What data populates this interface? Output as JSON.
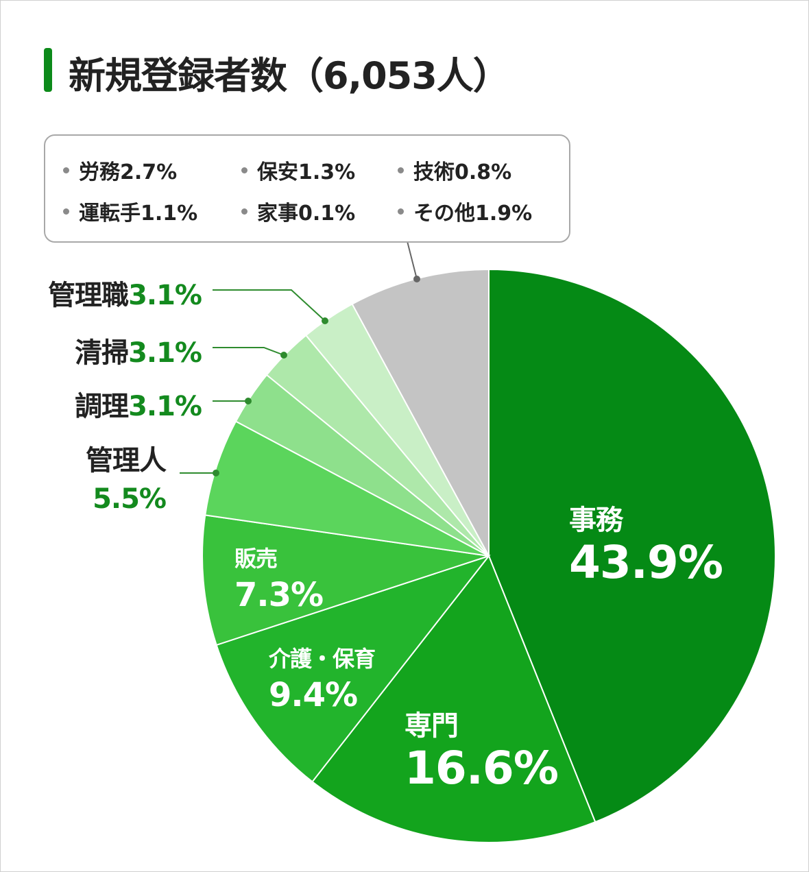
{
  "title": "新規登録者数（6,053人）",
  "colors": {
    "accent": "#0c8a1a",
    "label_green": "#138a1e",
    "other": "#c4c4c4",
    "leader": "#2e8b2e"
  },
  "legend_box": {
    "items": [
      {
        "name": "労務",
        "value": "2.7%"
      },
      {
        "name": "保安",
        "value": "1.3%"
      },
      {
        "name": "技術",
        "value": "0.8%"
      },
      {
        "name": "運転手",
        "value": "1.1%"
      },
      {
        "name": "家事",
        "value": "0.1%"
      },
      {
        "name": "その他",
        "value": "1.9%"
      }
    ]
  },
  "chart_data": {
    "type": "pie",
    "title": "新規登録者数（6,053人）",
    "unit": "%",
    "slices": [
      {
        "label": "事務",
        "value": 43.9,
        "color": "#058a15"
      },
      {
        "label": "専門",
        "value": 16.6,
        "color": "#13a41d"
      },
      {
        "label": "介護・保育",
        "value": 9.4,
        "color": "#22b42c"
      },
      {
        "label": "販売",
        "value": 7.3,
        "color": "#39c23c"
      },
      {
        "label": "管理人",
        "value": 5.5,
        "color": "#5bd55c"
      },
      {
        "label": "調理",
        "value": 3.1,
        "color": "#8ee08c"
      },
      {
        "label": "清掃",
        "value": 3.1,
        "color": "#aee8aa"
      },
      {
        "label": "管理職",
        "value": 3.1,
        "color": "#c9efc6"
      },
      {
        "label": "労務・保安・技術・運転手・家事・その他",
        "value": 7.9,
        "color": "#c4c4c4"
      }
    ],
    "grouped_into_last_slice": [
      "労務 2.7%",
      "保安 1.3%",
      "技術 0.8%",
      "運転手 1.1%",
      "家事 0.1%",
      "その他 1.9%"
    ]
  },
  "inner_labels": {
    "jimu": {
      "name": "事務",
      "pct": "43.9%"
    },
    "senmon": {
      "name": "専門",
      "pct": "16.6%"
    },
    "kaigo": {
      "name": "介護・保育",
      "pct": "9.4%"
    },
    "hanbai": {
      "name": "販売",
      "pct": "7.3%"
    }
  },
  "outer_labels": {
    "kanrishoku": {
      "name": "管理職",
      "pct": "3.1%"
    },
    "seiso": {
      "name": "清掃",
      "pct": "3.1%"
    },
    "chori": {
      "name": "調理",
      "pct": "3.1%"
    },
    "kanrinin": {
      "name": "管理人",
      "pct": "5.5%"
    }
  }
}
